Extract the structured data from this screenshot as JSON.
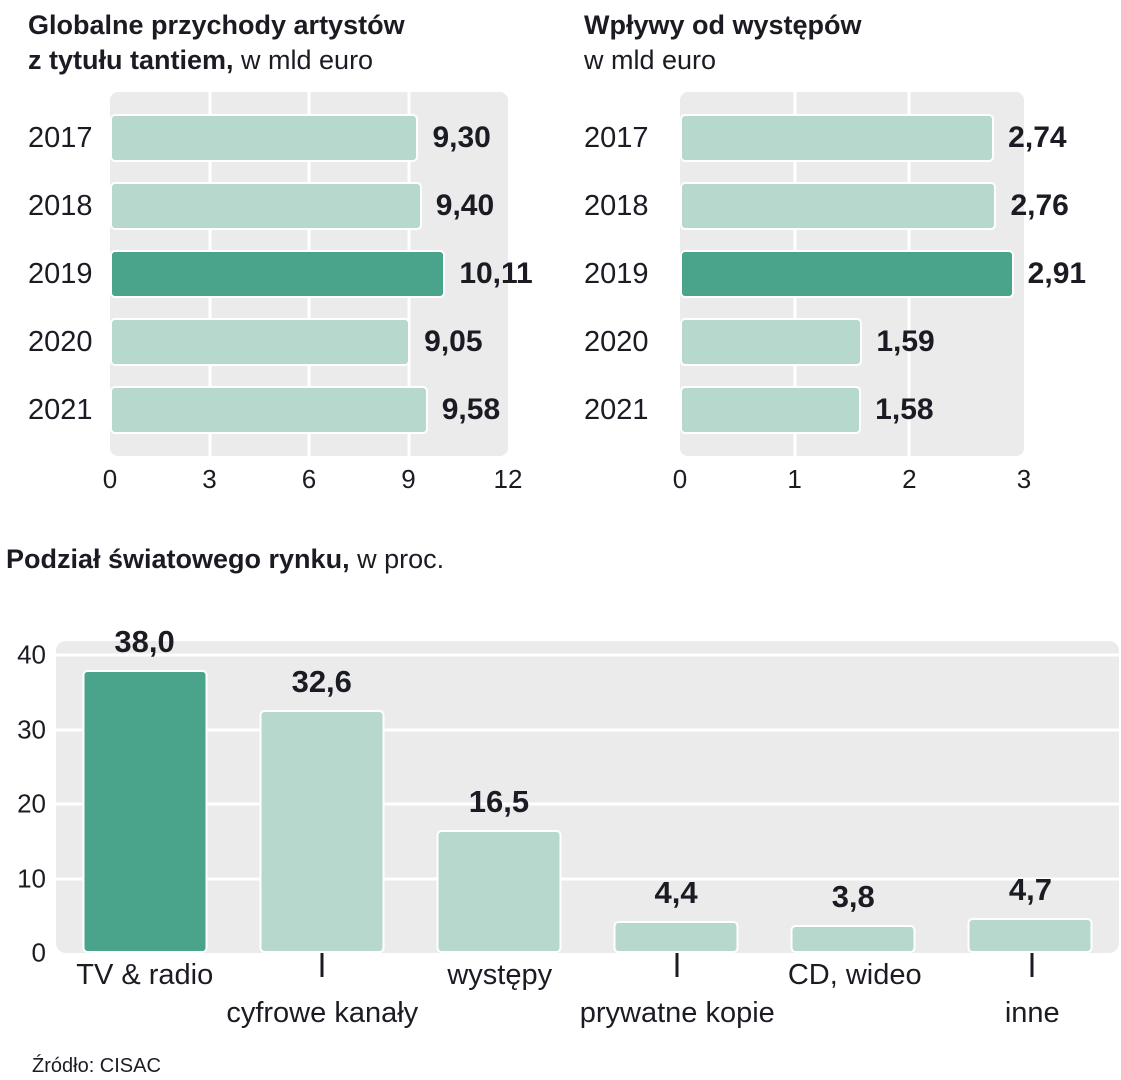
{
  "page": {
    "source": "Źródło: CISAC"
  },
  "colors": {
    "bar": "#b7d8cc",
    "bar_highlight": "#4aa38b",
    "panel_background": "#eaebea",
    "text": "#1b1b24"
  },
  "charts": {
    "royalties": {
      "title_line1": "Globalne przychody artystów",
      "title_line2_bold": "z tytułu tantiem,",
      "title_line2_normal": "w mld euro"
    },
    "performances": {
      "title_bold": "Wpływy od występów",
      "subtitle": "w mld euro"
    },
    "market": {
      "title_bold": "Podział światowego rynku,",
      "title_normal": "w proc."
    }
  },
  "chart_data": [
    {
      "type": "bar",
      "orientation": "horizontal",
      "title": "Globalne przychody artystów z tytułu tantiem, w mld euro",
      "categories": [
        "2017",
        "2018",
        "2019",
        "2020",
        "2021"
      ],
      "values": [
        9.3,
        9.4,
        10.11,
        9.05,
        9.58
      ],
      "value_labels": [
        "9,30",
        "9,40",
        "10,11",
        "9,05",
        "9,58"
      ],
      "highlight_index": 2,
      "xlim": [
        0,
        12
      ],
      "xticks": [
        0,
        3,
        6,
        9,
        12
      ],
      "unit": "mld euro",
      "grid": true,
      "legend": false
    },
    {
      "type": "bar",
      "orientation": "horizontal",
      "title": "Wpływy od występów, w mld euro",
      "categories": [
        "2017",
        "2018",
        "2019",
        "2020",
        "2021"
      ],
      "values": [
        2.74,
        2.76,
        2.91,
        1.59,
        1.58
      ],
      "value_labels": [
        "2,74",
        "2,76",
        "2,91",
        "1,59",
        "1,58"
      ],
      "highlight_index": 2,
      "xlim": [
        0,
        3
      ],
      "xticks": [
        0,
        1,
        2,
        3
      ],
      "unit": "mld euro",
      "grid": true,
      "legend": false
    },
    {
      "type": "bar",
      "orientation": "vertical",
      "title": "Podział światowego rynku, w proc.",
      "categories": [
        "TV & radio",
        "cyfrowe kanały",
        "występy",
        "prywatne kopie",
        "CD, wideo",
        "inne"
      ],
      "values": [
        38.0,
        32.6,
        16.5,
        4.4,
        3.8,
        4.7
      ],
      "value_labels": [
        "38,0",
        "32,6",
        "16,5",
        "4,4",
        "3,8",
        "4,7"
      ],
      "highlight_index": 0,
      "ylim": [
        0,
        40
      ],
      "yticks": [
        0,
        10,
        20,
        30,
        40
      ],
      "staggered_labels": [
        1,
        3,
        5
      ],
      "unit": "proc.",
      "grid": true,
      "legend": false
    }
  ]
}
